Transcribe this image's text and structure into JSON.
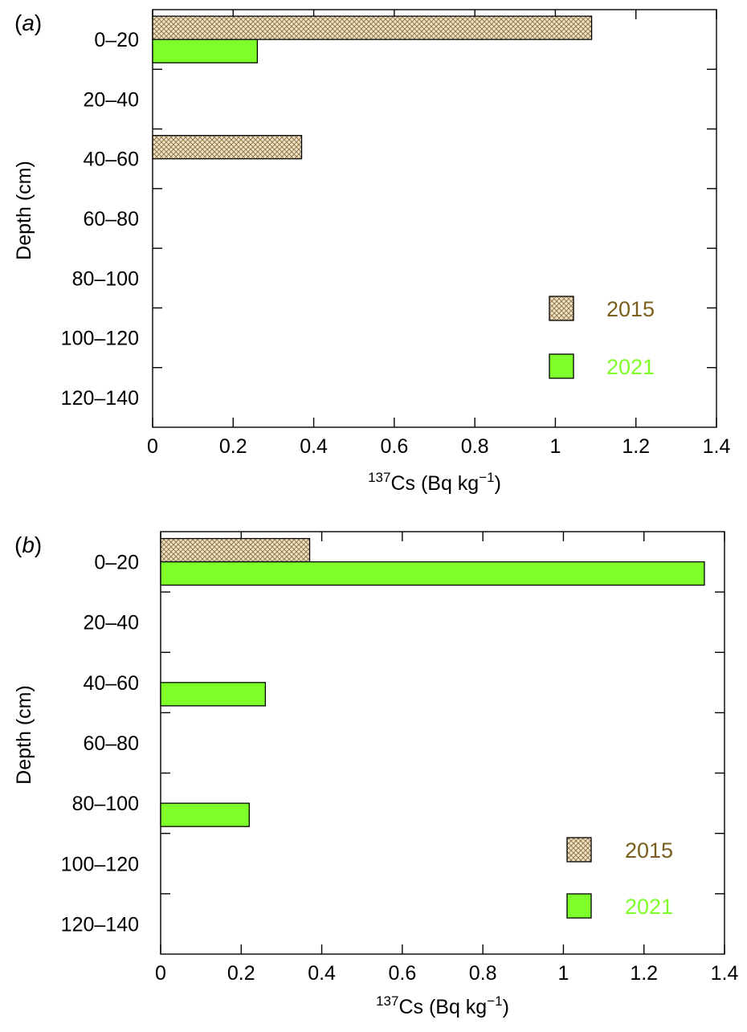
{
  "colors": {
    "series_2015_fill": "#efdfc4",
    "series_2015_hatch": "#8a7240",
    "series_2015_text": "#7a5f1e",
    "series_2021_fill": "#7fff2a",
    "series_2021_text": "#7fff2a",
    "frame": "#000000"
  },
  "chart_data": [
    {
      "type": "bar",
      "orientation": "horizontal",
      "panel_label_letter": "a",
      "categories": [
        "0–20",
        "20–40",
        "40–60",
        "60–80",
        "80–100",
        "100–120",
        "120–140"
      ],
      "series": [
        {
          "name": "2015",
          "values": [
            1.09,
            0,
            0.37,
            0,
            0,
            0,
            0
          ]
        },
        {
          "name": "2021",
          "values": [
            0.26,
            0,
            0,
            0,
            0,
            0,
            0
          ]
        }
      ],
      "xlabel_sup": "137",
      "xlabel_main": "Cs (Bq kg",
      "xlabel_sup2": "−1",
      "xlabel_end": ")",
      "ylabel": "Depth (cm)",
      "xlim": [
        0,
        1.4
      ],
      "xticks": [
        "0",
        "0.2",
        "0.4",
        "0.6",
        "0.8",
        "1",
        "1.2",
        "1.4"
      ],
      "legend": [
        "2015",
        "2021"
      ],
      "legend_position": "bottom-right"
    },
    {
      "type": "bar",
      "orientation": "horizontal",
      "panel_label_letter": "b",
      "categories": [
        "0–20",
        "20–40",
        "40–60",
        "60–80",
        "80–100",
        "100–120",
        "120–140"
      ],
      "series": [
        {
          "name": "2015",
          "values": [
            0.37,
            0,
            0,
            0,
            0,
            0,
            0
          ]
        },
        {
          "name": "2021",
          "values": [
            1.35,
            0,
            0.26,
            0,
            0.22,
            0,
            0
          ]
        }
      ],
      "xlabel_sup": "137",
      "xlabel_main": "Cs (Bq kg",
      "xlabel_sup2": "−1",
      "xlabel_end": ")",
      "ylabel": "Depth (cm)",
      "xlim": [
        0,
        1.4
      ],
      "xticks": [
        "0",
        "0.2",
        "0.4",
        "0.6",
        "0.8",
        "1",
        "1.2",
        "1.4"
      ],
      "legend": [
        "2015",
        "2021"
      ],
      "legend_position": "bottom-right"
    }
  ]
}
